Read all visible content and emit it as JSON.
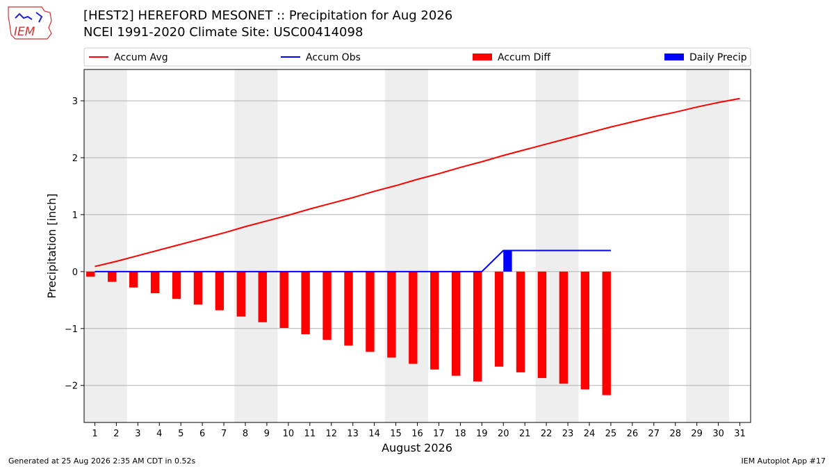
{
  "header": {
    "title_line1": "[HEST2] HEREFORD MESONET :: Precipitation for Aug 2026",
    "title_line2": "NCEI 1991-2020 Climate Site: USC00414098",
    "logo_text": "IEM"
  },
  "footer": {
    "generated": "Generated at 25 Aug 2026 2:35 AM CDT in 0.52s",
    "app": "IEM Autoplot App #17"
  },
  "chart_data": {
    "type": "bar",
    "xlabel": "August 2026",
    "ylabel": "Precipitation [inch]",
    "xlim": [
      0.5,
      31.5
    ],
    "ylim": [
      -2.65,
      3.55
    ],
    "yticks": [
      -2,
      -1,
      0,
      1,
      2,
      3
    ],
    "ytick_labels": [
      "−2",
      "−1",
      "0",
      "1",
      "2",
      "3"
    ],
    "days": [
      1,
      2,
      3,
      4,
      5,
      6,
      7,
      8,
      9,
      10,
      11,
      12,
      13,
      14,
      15,
      16,
      17,
      18,
      19,
      20,
      21,
      22,
      23,
      24,
      25,
      26,
      27,
      28,
      29,
      30,
      31
    ],
    "weekend_bands": [
      [
        0.5,
        2.5
      ],
      [
        7.5,
        9.5
      ],
      [
        14.5,
        16.5
      ],
      [
        21.5,
        23.5
      ],
      [
        28.5,
        30.5
      ]
    ],
    "grid": "horizontal",
    "legend_position": "top",
    "legend": [
      {
        "label": "Accum Avg",
        "kind": "line",
        "color": "#ff0000"
      },
      {
        "label": "Accum Obs",
        "kind": "line",
        "color": "#0000ff"
      },
      {
        "label": "Accum Diff",
        "kind": "bar",
        "color": "#ff0000"
      },
      {
        "label": "Daily Precip",
        "kind": "bar",
        "color": "#0000ff"
      }
    ],
    "series": [
      {
        "name": "Accum Avg",
        "type": "line",
        "color": "#ff0000",
        "x": [
          1,
          2,
          3,
          4,
          5,
          6,
          7,
          8,
          9,
          10,
          11,
          12,
          13,
          14,
          15,
          16,
          17,
          18,
          19,
          20,
          21,
          22,
          23,
          24,
          25,
          26,
          27,
          28,
          29,
          30,
          31
        ],
        "values": [
          0.09,
          0.18,
          0.28,
          0.38,
          0.48,
          0.58,
          0.68,
          0.79,
          0.89,
          0.99,
          1.1,
          1.2,
          1.3,
          1.41,
          1.51,
          1.62,
          1.72,
          1.83,
          1.93,
          2.04,
          2.14,
          2.24,
          2.34,
          2.44,
          2.54,
          2.63,
          2.72,
          2.8,
          2.89,
          2.97,
          3.04
        ]
      },
      {
        "name": "Accum Obs",
        "type": "line",
        "color": "#0000ff",
        "x": [
          1,
          2,
          3,
          4,
          5,
          6,
          7,
          8,
          9,
          10,
          11,
          12,
          13,
          14,
          15,
          16,
          17,
          18,
          19,
          20,
          21,
          22,
          23,
          24,
          25
        ],
        "values": [
          0,
          0,
          0,
          0,
          0,
          0,
          0,
          0,
          0,
          0,
          0,
          0,
          0,
          0,
          0,
          0,
          0,
          0,
          0,
          0.37,
          0.37,
          0.37,
          0.37,
          0.37,
          0.37
        ]
      },
      {
        "name": "Accum Diff",
        "type": "bar",
        "color": "#ff0000",
        "offset": -0.2,
        "x": [
          1,
          2,
          3,
          4,
          5,
          6,
          7,
          8,
          9,
          10,
          11,
          12,
          13,
          14,
          15,
          16,
          17,
          18,
          19,
          20,
          21,
          22,
          23,
          24,
          25
        ],
        "values": [
          -0.09,
          -0.18,
          -0.28,
          -0.38,
          -0.48,
          -0.58,
          -0.68,
          -0.79,
          -0.89,
          -0.99,
          -1.1,
          -1.2,
          -1.3,
          -1.41,
          -1.51,
          -1.62,
          -1.72,
          -1.83,
          -1.93,
          -1.67,
          -1.77,
          -1.87,
          -1.97,
          -2.07,
          -2.17
        ]
      },
      {
        "name": "Daily Precip",
        "type": "bar",
        "color": "#0000ff",
        "offset": 0.2,
        "x": [
          20
        ],
        "values": [
          0.37
        ]
      }
    ]
  }
}
